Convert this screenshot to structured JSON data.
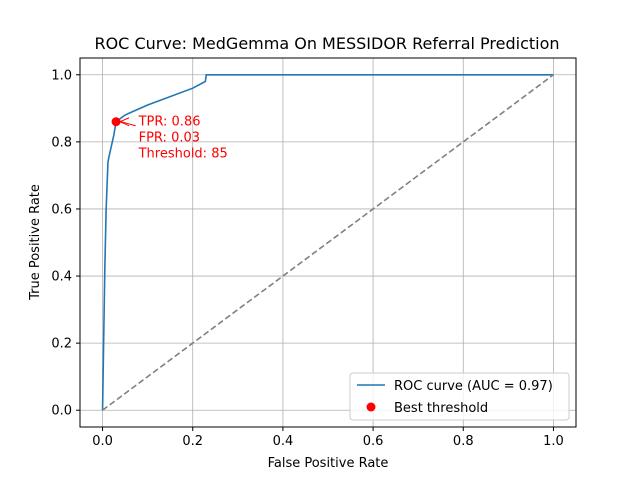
{
  "chart_data": {
    "type": "line",
    "title": "ROC Curve: MedGemma On MESSIDOR Referral Prediction",
    "xlabel": "False Positive Rate",
    "ylabel": "True Positive Rate",
    "xlim": [
      -0.05,
      1.05
    ],
    "ylim": [
      -0.05,
      1.05
    ],
    "xticks": [
      0.0,
      0.2,
      0.4,
      0.6,
      0.8,
      1.0
    ],
    "yticks": [
      0.0,
      0.2,
      0.4,
      0.6,
      0.8,
      1.0
    ],
    "xtick_labels": [
      "0.0",
      "0.2",
      "0.4",
      "0.6",
      "0.8",
      "1.0"
    ],
    "ytick_labels": [
      "0.0",
      "0.2",
      "0.4",
      "0.6",
      "0.8",
      "1.0"
    ],
    "grid": true,
    "legend_position": "lower right",
    "series": [
      {
        "name": "ROC curve (AUC = 0.97)",
        "color": "#1f77b4",
        "style": "solid",
        "x": [
          0.0,
          0.005,
          0.008,
          0.012,
          0.015,
          0.025,
          0.03,
          0.05,
          0.1,
          0.2,
          0.228,
          0.23,
          1.0
        ],
        "y": [
          0.0,
          0.42,
          0.6,
          0.74,
          0.76,
          0.82,
          0.86,
          0.88,
          0.91,
          0.96,
          0.98,
          1.0,
          1.0
        ]
      },
      {
        "name": "",
        "color": "#808080",
        "style": "dashed",
        "x": [
          0.0,
          1.0
        ],
        "y": [
          0.0,
          1.0
        ]
      }
    ],
    "points": [
      {
        "name": "Best threshold",
        "color": "#ff0000",
        "x": 0.03,
        "y": 0.86
      }
    ],
    "annotation": {
      "color": "#ff0000",
      "lines": [
        "TPR: 0.86",
        "FPR: 0.03",
        "Threshold: 85"
      ],
      "text_at": [
        0.08,
        0.86
      ]
    }
  }
}
